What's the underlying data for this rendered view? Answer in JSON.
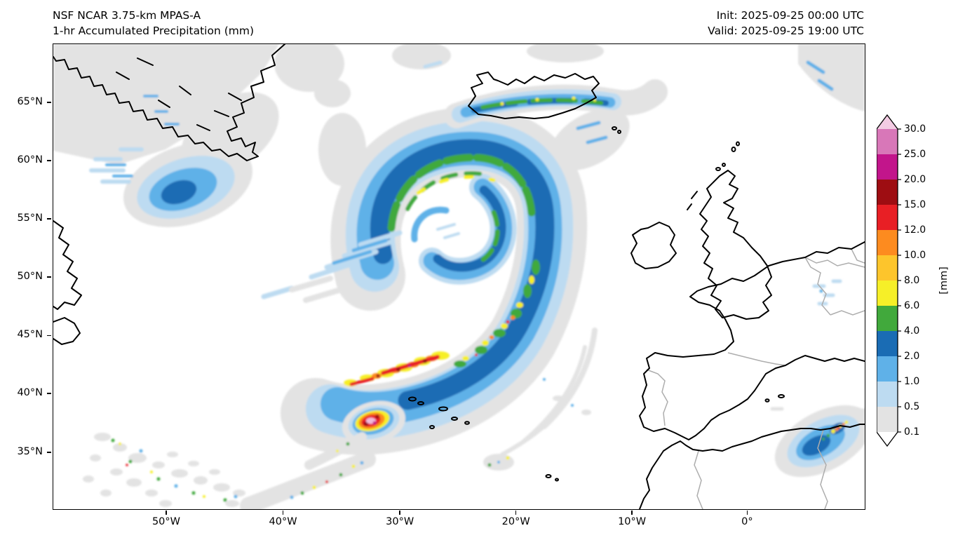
{
  "header": {
    "title_line1": "NSF NCAR 3.75-km MPAS-A",
    "title_line2": "1-hr Accumulated Precipitation (mm)",
    "init_label": "Init: 2025-09-25 00:00 UTC",
    "valid_label": "Valid: 2025-09-25 19:00 UTC"
  },
  "axes": {
    "y_ticks": [
      "65°N",
      "60°N",
      "55°N",
      "50°N",
      "45°N",
      "40°N",
      "35°N"
    ],
    "x_ticks": [
      "50°W",
      "40°W",
      "30°W",
      "20°W",
      "10°W",
      "0°"
    ]
  },
  "colorbar": {
    "unit_label": "[mm]",
    "levels": [
      "0.1",
      "0.5",
      "1.0",
      "2.0",
      "4.0",
      "6.0",
      "8.0",
      "10.0",
      "12.0",
      "15.0",
      "20.0",
      "25.0",
      "30.0"
    ],
    "band_colors_bottom_to_top": [
      "#e3e3e3",
      "#bddbf1",
      "#5fb1e8",
      "#1a6cb4",
      "#41a93c",
      "#f6ef28",
      "#fdc52c",
      "#fd8b1f",
      "#e81f25",
      "#9e0d12",
      "#c2158b",
      "#d877b8"
    ],
    "under_color": "#ffffff",
    "over_color": "#f3cce3"
  },
  "chart_data": {
    "type": "heatmap",
    "title": "1-hr Accumulated Precipitation (mm)",
    "model": "NSF NCAR 3.75-km MPAS-A",
    "init_time": "2025-09-25 00:00 UTC",
    "valid_time": "2025-09-25 19:00 UTC",
    "units": "mm",
    "x_axis": {
      "ticks": [
        "50°W",
        "40°W",
        "30°W",
        "20°W",
        "10°W",
        "0°"
      ],
      "approx_range": [
        "60°W",
        "10°E"
      ]
    },
    "y_axis": {
      "ticks": [
        "65°N",
        "60°N",
        "55°N",
        "50°N",
        "45°N",
        "40°N",
        "35°N"
      ],
      "approx_range": [
        "30°N",
        "70°N"
      ]
    },
    "contour_levels_mm": [
      0.1,
      0.5,
      1.0,
      2.0,
      4.0,
      6.0,
      8.0,
      10.0,
      12.0,
      15.0,
      20.0,
      25.0,
      30.0
    ],
    "region": "North Atlantic, Greenland, Iceland, British Isles, Iberia, NW Africa",
    "features": [
      {
        "name": "occluded-cyclone-comma",
        "approx_location": "57°N 27°W",
        "intensity_mm": "1-8",
        "desc": "Large comma-shaped precipitation shield with spiral head; widespread 1-4 mm (blue) and embedded 4-8 mm green/yellow streaks along the inner edge"
      },
      {
        "name": "trailing-frontal-band",
        "approx_location": "41-48°N, 22-33°W",
        "intensity_mm": "6-20",
        "desc": "Narrow convective rainband southwest of the cyclone with yellow/orange/red cells"
      },
      {
        "name": "convective-cluster-near-azores",
        "approx_location": "37.5°N 32°W",
        "intensity_mm": "20-30+",
        "desc": "Intense isolated convective cluster with dark red, magenta and pink (>25-30 mm) core"
      },
      {
        "name": "iceland-band",
        "approx_location": "64-65°N, 14-24°W",
        "intensity_mm": "2-8",
        "desc": "Elongated orographic band across Iceland with green/yellow streaks"
      },
      {
        "name": "se-greenland-rain",
        "approx_location": "57-59°N, 42-47°W",
        "intensity_mm": "1-4",
        "desc": "Stratiform precipitation area southeast of Greenland with dark blue core"
      },
      {
        "name": "greenland-interior-light",
        "approx_location": "NW corner of domain",
        "intensity_mm": "0.1-0.5",
        "desc": "Broad light-gray 0.1-0.5 mm area over Greenland"
      },
      {
        "name": "algeria-tunisia-convection",
        "approx_location": "35-37°N, 0-8°E",
        "intensity_mm": "2-12",
        "desc": "Convective area over NE Algeria/Tunisia with blue core and yellow/orange specks"
      },
      {
        "name": "scattered-showers-sw-quadrant",
        "approx_location": "31-37°N, 35-55°W",
        "intensity_mm": "0.1-6",
        "desc": "Scattered weak showers with isolated small colored cells"
      },
      {
        "name": "norway-corner-light",
        "approx_location": "NE corner of domain",
        "intensity_mm": "0.1-1",
        "desc": "Light precipitation patch at the far northeast edge"
      }
    ]
  }
}
